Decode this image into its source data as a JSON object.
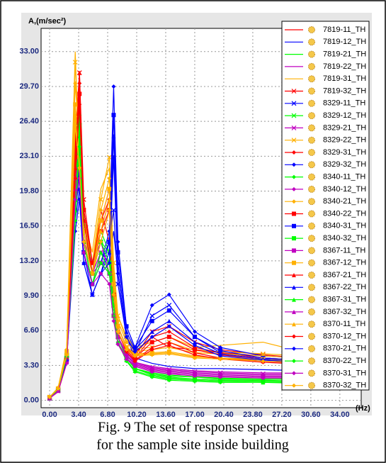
{
  "chart_data": {
    "type": "line",
    "caption": [
      "Fig. 9 The set of response spectra",
      "for the sample site inside building"
    ],
    "ylabel": "A,(m/sec²)",
    "xlabel": "(Hz)",
    "xlim": [
      -1,
      36.5
    ],
    "ylim": [
      -0.7,
      35.2
    ],
    "grid": true,
    "xticks": [
      {
        "value": 0,
        "label": "0.00"
      },
      {
        "value": 3.4,
        "label": "3.40"
      },
      {
        "value": 6.8,
        "label": "6.80"
      },
      {
        "value": 10.2,
        "label": "10.20"
      },
      {
        "value": 13.6,
        "label": "13.60"
      },
      {
        "value": 17,
        "label": "17.00"
      },
      {
        "value": 20.4,
        "label": "20.40"
      },
      {
        "value": 23.8,
        "label": "23.80"
      },
      {
        "value": 27.2,
        "label": "27.20"
      },
      {
        "value": 30.6,
        "label": "30.60"
      },
      {
        "value": 34,
        "label": "34.00"
      }
    ],
    "yticks": [
      {
        "value": 0,
        "label": "0.00"
      },
      {
        "value": 3.3,
        "label": "3.30"
      },
      {
        "value": 6.6,
        "label": "6.60"
      },
      {
        "value": 9.9,
        "label": "9.90"
      },
      {
        "value": 13.2,
        "label": "13.20"
      },
      {
        "value": 16.5,
        "label": "16.50"
      },
      {
        "value": 19.8,
        "label": "19.80"
      },
      {
        "value": 23.1,
        "label": "23.10"
      },
      {
        "value": 26.4,
        "label": "26.40"
      },
      {
        "value": 29.7,
        "label": "29.70"
      },
      {
        "value": 33,
        "label": "33.00"
      }
    ],
    "x": [
      0,
      1,
      2,
      3,
      3.5,
      4,
      5,
      6,
      7,
      7.5,
      8,
      9,
      10,
      12,
      14,
      17,
      20,
      25,
      30,
      35
    ],
    "series": [
      {
        "name": "7819-11_TH",
        "color": "#ff0000",
        "marker": "none",
        "values": [
          0.2,
          0.8,
          3.5,
          22,
          26,
          16,
          12,
          18,
          15,
          10,
          7,
          5,
          4.5,
          6,
          5,
          4.8,
          4.5,
          4.2,
          4,
          4
        ]
      },
      {
        "name": "7819-12_TH",
        "color": "#0000ff",
        "marker": "none",
        "values": [
          0.2,
          0.9,
          4,
          18,
          24,
          15,
          11,
          14,
          13,
          16,
          12,
          6,
          4,
          3.5,
          3.2,
          3,
          3,
          2.9,
          2.8,
          2.8
        ]
      },
      {
        "name": "7819-21_TH",
        "color": "#00ff00",
        "marker": "none",
        "values": [
          0.2,
          1,
          4.5,
          20,
          28,
          18,
          12,
          16,
          14,
          9,
          6,
          4,
          3,
          2.5,
          2.3,
          2.2,
          2,
          2,
          2,
          2
        ]
      },
      {
        "name": "7819-22_TH",
        "color": "#c000c0",
        "marker": "none",
        "values": [
          0.2,
          0.8,
          3.8,
          24,
          21,
          15,
          13,
          15,
          12,
          8,
          6,
          4.5,
          3.6,
          3.2,
          3,
          2.8,
          2.7,
          2.6,
          2.6,
          2.5
        ]
      },
      {
        "name": "7819-31_TH",
        "color": "#ffb000",
        "marker": "none",
        "values": [
          0.3,
          1.2,
          5,
          33,
          22,
          17,
          14,
          20,
          22,
          12,
          8,
          6,
          5,
          5.5,
          6,
          5,
          5.2,
          5.5,
          4.5,
          4.2
        ]
      },
      {
        "name": "7819-32_TH",
        "color": "#ff0000",
        "marker": "x",
        "values": [
          0.2,
          0.9,
          4,
          25,
          31,
          19,
          13,
          17,
          20,
          11,
          7,
          5,
          4.2,
          6.5,
          7,
          5.5,
          4.8,
          4.3,
          4,
          3.9
        ]
      },
      {
        "name": "8329-11_TH",
        "color": "#0000ff",
        "marker": "x",
        "values": [
          0.2,
          1,
          4,
          19,
          23,
          14,
          10,
          12,
          15,
          18,
          11,
          6,
          4.5,
          8,
          9,
          6,
          4.5,
          4,
          3.8,
          3.7
        ]
      },
      {
        "name": "8329-12_TH",
        "color": "#00ff00",
        "marker": "x",
        "values": [
          0.2,
          1,
          4.2,
          21,
          26,
          16,
          12,
          15,
          13,
          9,
          6,
          4,
          3,
          2.6,
          2.4,
          2.2,
          2.1,
          2,
          2,
          2
        ]
      },
      {
        "name": "8329-21_TH",
        "color": "#c000c0",
        "marker": "x",
        "values": [
          0.2,
          0.9,
          3.9,
          23,
          25,
          17,
          12,
          14,
          13,
          9,
          6.5,
          4.6,
          3.6,
          3.1,
          2.9,
          2.7,
          2.6,
          2.5,
          2.5,
          2.4
        ]
      },
      {
        "name": "8329-22_TH",
        "color": "#ffb000",
        "marker": "x",
        "values": [
          0.3,
          1.1,
          4.6,
          32,
          23,
          18,
          13,
          19,
          23,
          13,
          8,
          5.8,
          4.9,
          5,
          5.5,
          4.7,
          4.6,
          4.4,
          4.2,
          4.1
        ]
      },
      {
        "name": "8329-31_TH",
        "color": "#ff0000",
        "marker": "diamond",
        "values": [
          0.2,
          1,
          4.3,
          24,
          30,
          18,
          13,
          17,
          19,
          11,
          7,
          5,
          4,
          6,
          6.5,
          5,
          4.5,
          4,
          3.8,
          3.8
        ]
      },
      {
        "name": "8329-32_TH",
        "color": "#0000ff",
        "marker": "diamond",
        "values": [
          0.2,
          1,
          4,
          18,
          22,
          14,
          11,
          13,
          16,
          29.7,
          15,
          7,
          5,
          9,
          10,
          6.5,
          5,
          4.2,
          4,
          4
        ]
      },
      {
        "name": "8340-11_TH",
        "color": "#00ff00",
        "marker": "diamond",
        "values": [
          0.2,
          1,
          4.4,
          20,
          27,
          17,
          12,
          15,
          14,
          10,
          6,
          4,
          3,
          2.5,
          2.2,
          2,
          1.9,
          1.9,
          1.8,
          1.8
        ]
      },
      {
        "name": "8340-12_TH",
        "color": "#c000c0",
        "marker": "diamond",
        "values": [
          0.2,
          0.9,
          3.8,
          22,
          24,
          16,
          12,
          14,
          12,
          9,
          6,
          4.3,
          3.5,
          3,
          2.8,
          2.6,
          2.5,
          2.4,
          2.4,
          2.4
        ]
      },
      {
        "name": "8340-21_TH",
        "color": "#ffb000",
        "marker": "diamond",
        "values": [
          0.3,
          1.2,
          4.8,
          30,
          24,
          17,
          13,
          18,
          21,
          12,
          7.5,
          5.5,
          4.6,
          4.8,
          5,
          4.5,
          4.4,
          4.2,
          4,
          4
        ]
      },
      {
        "name": "8340-22_TH",
        "color": "#ff0000",
        "marker": "square",
        "values": [
          0.2,
          1,
          4.2,
          23,
          29,
          18,
          13,
          16,
          18,
          10,
          7,
          5,
          4,
          5.5,
          6,
          4.8,
          4.3,
          3.9,
          3.7,
          3.6
        ]
      },
      {
        "name": "8340-31_TH",
        "color": "#0000ff",
        "marker": "square",
        "values": [
          0.2,
          1,
          4,
          18,
          21,
          14,
          11,
          13,
          15,
          27,
          14,
          7,
          5,
          7.5,
          8.5,
          6,
          4.7,
          4,
          3.8,
          3.8
        ]
      },
      {
        "name": "8340-32_TH",
        "color": "#00ff00",
        "marker": "square",
        "values": [
          0.2,
          1,
          4.3,
          19,
          26,
          16,
          12,
          15,
          13,
          9,
          6,
          4,
          3,
          2.4,
          2.1,
          2,
          1.9,
          1.8,
          1.8,
          1.8
        ]
      },
      {
        "name": "8367-11_TH",
        "color": "#c000c0",
        "marker": "square",
        "values": [
          0.2,
          0.9,
          3.7,
          21,
          23,
          15,
          12,
          13,
          12,
          8,
          6,
          4.2,
          3.4,
          2.9,
          2.7,
          2.5,
          2.4,
          2.3,
          2.3,
          2.3
        ]
      },
      {
        "name": "8367-12_TH",
        "color": "#ffb000",
        "marker": "square",
        "values": [
          0.3,
          1.1,
          4.5,
          28,
          23,
          16,
          12,
          17,
          20,
          11,
          7,
          5,
          4.4,
          4.5,
          4.6,
          4.2,
          4,
          3.9,
          3.8,
          3.8
        ]
      },
      {
        "name": "8367-21_TH",
        "color": "#ff0000",
        "marker": "triangle",
        "values": [
          0.2,
          1,
          4.1,
          22,
          31,
          17,
          12,
          16,
          19,
          10,
          6.5,
          4.8,
          3.8,
          5,
          5.5,
          4.5,
          4,
          3.7,
          3.5,
          3.5
        ]
      },
      {
        "name": "8367-22_TH",
        "color": "#0000ff",
        "marker": "triangle",
        "values": [
          0.2,
          1,
          3.9,
          17,
          20,
          13,
          10,
          12,
          14,
          25,
          13,
          6.5,
          4.8,
          6.5,
          7.5,
          5.5,
          4.4,
          3.9,
          3.7,
          3.6
        ]
      },
      {
        "name": "8367-31_TH",
        "color": "#00ff00",
        "marker": "triangle",
        "values": [
          0.2,
          1,
          4.2,
          18,
          25,
          15,
          11,
          14,
          12,
          8,
          5.5,
          3.8,
          2.8,
          2.3,
          2,
          1.9,
          1.8,
          1.7,
          1.7,
          1.7
        ]
      },
      {
        "name": "8367-32_TH",
        "color": "#c000c0",
        "marker": "triangle",
        "values": [
          0.2,
          0.9,
          3.6,
          20,
          22,
          14,
          11,
          13,
          12,
          8,
          5.5,
          4,
          3.3,
          2.8,
          2.6,
          2.4,
          2.3,
          2.2,
          2.2,
          2.2
        ]
      },
      {
        "name": "8370-11_TH",
        "color": "#ffb000",
        "marker": "triangle",
        "values": [
          0.3,
          1.1,
          4.4,
          27,
          22,
          16,
          12,
          16,
          19,
          11,
          7,
          5,
          4.3,
          4.4,
          4.5,
          4.1,
          4,
          3.8,
          3.7,
          3.7
        ]
      },
      {
        "name": "8370-12_TH",
        "color": "#ff0000",
        "marker": "diamond",
        "values": [
          0.2,
          1,
          4,
          21,
          28,
          17,
          12,
          15,
          18,
          10,
          6.5,
          4.6,
          3.7,
          4.8,
          5.2,
          4.3,
          3.9,
          3.6,
          3.4,
          3.4
        ]
      },
      {
        "name": "8370-21_TH",
        "color": "#0000ff",
        "marker": "diamond",
        "values": [
          0.2,
          1,
          3.8,
          16,
          19,
          13,
          10,
          12,
          13,
          23,
          12,
          6,
          4.6,
          6,
          7,
          5.2,
          4.2,
          3.8,
          3.6,
          3.5
        ]
      },
      {
        "name": "8370-22_TH",
        "color": "#00ff00",
        "marker": "diamond",
        "values": [
          0.2,
          1,
          4.1,
          17,
          24,
          15,
          11,
          13,
          12,
          8,
          5.5,
          3.7,
          2.7,
          2.2,
          1.9,
          1.8,
          1.7,
          1.7,
          1.6,
          1.6
        ]
      },
      {
        "name": "8370-31_TH",
        "color": "#c000c0",
        "marker": "diamond",
        "values": [
          0.2,
          0.9,
          3.5,
          19,
          21,
          14,
          11,
          12,
          11,
          7.5,
          5.3,
          3.9,
          3.2,
          2.7,
          2.5,
          2.3,
          2.2,
          2.1,
          2.1,
          2.1
        ]
      },
      {
        "name": "8370-32_TH",
        "color": "#ffb000",
        "marker": "diamond",
        "values": [
          0.3,
          1.1,
          4.3,
          26,
          22,
          15,
          12,
          15,
          18,
          10,
          6.5,
          4.8,
          4.2,
          4.3,
          4.4,
          4,
          3.9,
          3.7,
          3.6,
          3.6
        ]
      }
    ]
  }
}
